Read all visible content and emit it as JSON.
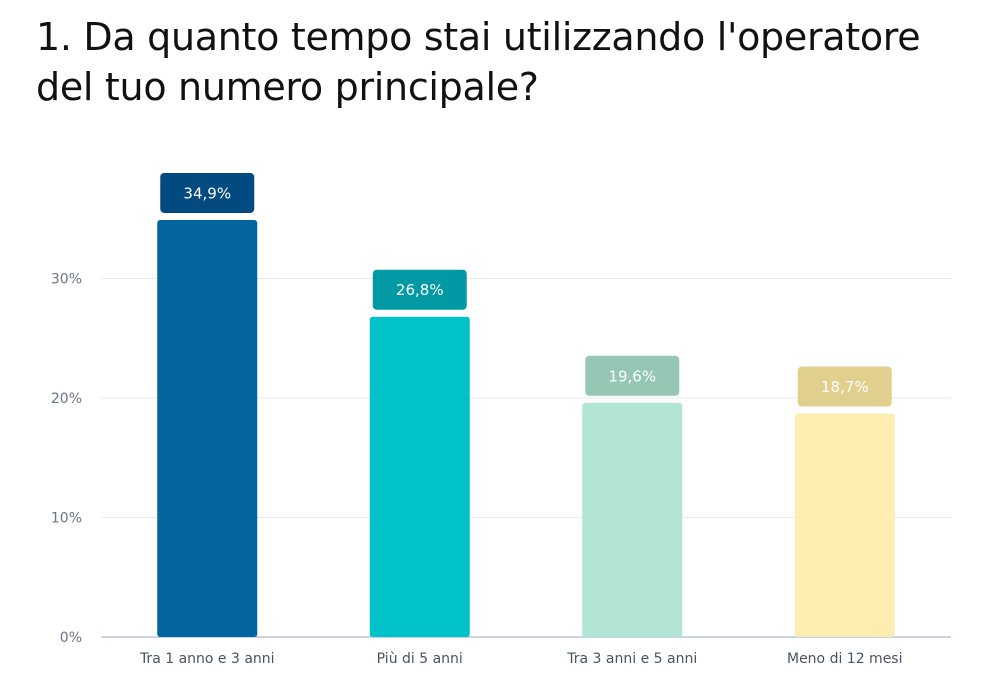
{
  "title": "1. Da quanto tempo stai utilizzando l'operatore del tuo numero principale?",
  "chart_data": {
    "type": "bar",
    "title": "1. Da quanto tempo stai utilizzando l'operatore del tuo numero principale?",
    "xlabel": "",
    "ylabel": "",
    "categories": [
      "Tra 1 anno e 3 anni",
      "Più di 5 anni",
      "Tra 3 anni e 5 anni",
      "Meno di 12 mesi"
    ],
    "values": [
      34.9,
      26.8,
      19.6,
      18.7
    ],
    "value_labels": [
      "34,9%",
      "26,8%",
      "19,6%",
      "18,7%"
    ],
    "ylim": [
      0,
      40
    ],
    "yticks": [
      0,
      10,
      20,
      30
    ],
    "ytick_labels": [
      "0%",
      "10%",
      "20%",
      "30%"
    ],
    "grid": true,
    "legend": "none",
    "colors": [
      "#03659e",
      "#00c2c8",
      "#b2e5d3",
      "#feedb0"
    ],
    "label_colors": [
      "#034a80",
      "#0199a4",
      "#94c8b5",
      "#e1d08d"
    ],
    "label_text_colors": [
      "#ffffff",
      "#ffffff",
      "#ffffff",
      "#ffffff"
    ]
  }
}
